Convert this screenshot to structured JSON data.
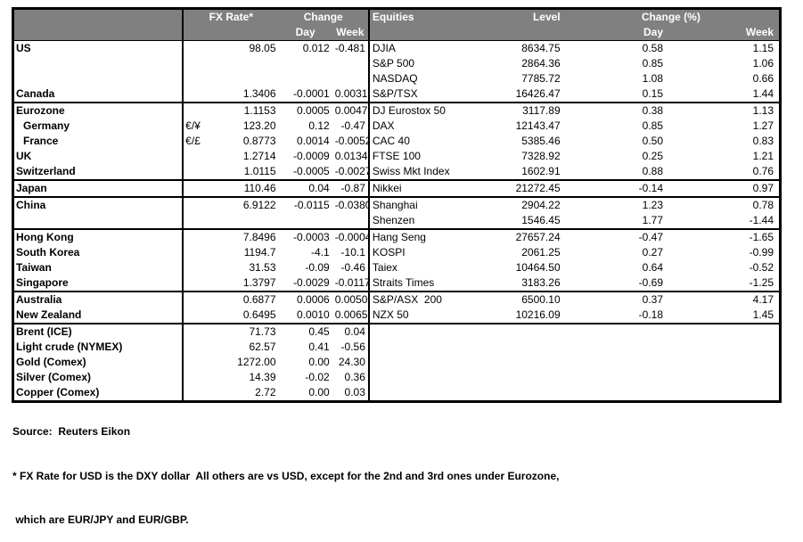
{
  "colors": {
    "header_bg": "#808080",
    "header_text": "#ffffff",
    "border": "#000000",
    "background": "#ffffff",
    "text": "#000000"
  },
  "fx_panel": {
    "header": {
      "rate": "FX Rate*",
      "change": "Change",
      "day": "Day",
      "week": "Week"
    }
  },
  "equity_panel": {
    "header": {
      "name": "Equities",
      "level": "Level",
      "change": "Change (%)",
      "day": "Day",
      "week": "Week"
    }
  },
  "rows": [
    {
      "name": "US",
      "pair": "",
      "rate": "98.05",
      "day": "0.012",
      "week": "-0.481",
      "indent": false,
      "eq_name": "DJIA",
      "level": "8634.75",
      "eq_day": "0.58",
      "eq_week": "1.15",
      "group_end": false
    },
    {
      "name": "",
      "pair": "",
      "rate": "",
      "day": "",
      "week": "",
      "indent": false,
      "eq_name": "S&P 500",
      "level": "2864.36",
      "eq_day": "0.85",
      "eq_week": "1.06",
      "group_end": false
    },
    {
      "name": "",
      "pair": "",
      "rate": "",
      "day": "",
      "week": "",
      "indent": false,
      "eq_name": "NASDAQ",
      "level": "7785.72",
      "eq_day": "1.08",
      "eq_week": "0.66",
      "group_end": false
    },
    {
      "name": "Canada",
      "pair": "",
      "rate": "1.3406",
      "day": "-0.0001",
      "week": "0.0031",
      "indent": false,
      "eq_name": "S&P/TSX",
      "level": "16426.47",
      "eq_day": "0.15",
      "eq_week": "1.44",
      "group_end": true
    },
    {
      "name": "Eurozone",
      "pair": "",
      "rate": "1.1153",
      "day": "0.0005",
      "week": "0.0047",
      "indent": false,
      "eq_name": "DJ Eurostox 50",
      "level": "3117.89",
      "eq_day": "0.38",
      "eq_week": "1.13",
      "group_end": false
    },
    {
      "name": "Germany",
      "pair": "€/¥",
      "rate": "123.20",
      "day": "0.12",
      "week": "-0.47",
      "indent": true,
      "eq_name": "DAX",
      "level": "12143.47",
      "eq_day": "0.85",
      "eq_week": "1.27",
      "group_end": false
    },
    {
      "name": "France",
      "pair": "€/£",
      "rate": "0.8773",
      "day": "0.0014",
      "week": "-0.0052",
      "indent": true,
      "eq_name": "CAC 40",
      "level": "5385.46",
      "eq_day": "0.50",
      "eq_week": "0.83",
      "group_end": false
    },
    {
      "name": "UK",
      "pair": "",
      "rate": "1.2714",
      "day": "-0.0009",
      "week": "0.0134",
      "indent": false,
      "eq_name": "FTSE 100",
      "level": "7328.92",
      "eq_day": "0.25",
      "eq_week": "1.21",
      "group_end": false
    },
    {
      "name": "Switzerland",
      "pair": "",
      "rate": "1.0115",
      "day": "-0.0005",
      "week": "-0.0027",
      "indent": false,
      "eq_name": "Swiss Mkt Index",
      "level": "1602.91",
      "eq_day": "0.88",
      "eq_week": "0.76",
      "group_end": true
    },
    {
      "name": "Japan",
      "pair": "",
      "rate": "110.46",
      "day": "0.04",
      "week": "-0.87",
      "indent": false,
      "eq_name": "Nikkei",
      "level": "21272.45",
      "eq_day": "-0.14",
      "eq_week": "0.97",
      "group_end": true
    },
    {
      "name": "China",
      "pair": "",
      "rate": "6.9122",
      "day": "-0.0115",
      "week": "-0.0380",
      "indent": false,
      "eq_name": "Shanghai",
      "level": "2904.22",
      "eq_day": "1.23",
      "eq_week": "0.78",
      "group_end": false
    },
    {
      "name": "",
      "pair": "",
      "rate": "",
      "day": "",
      "week": "",
      "indent": false,
      "eq_name": "Shenzen",
      "level": "1546.45",
      "eq_day": "1.77",
      "eq_week": "-1.44",
      "group_end": true
    },
    {
      "name": "Hong Kong",
      "pair": "",
      "rate": "7.8496",
      "day": "-0.0003",
      "week": "-0.0004",
      "indent": false,
      "eq_name": "Hang Seng",
      "level": "27657.24",
      "eq_day": "-0.47",
      "eq_week": "-1.65",
      "group_end": false
    },
    {
      "name": "South Korea",
      "pair": "",
      "rate": "1194.7",
      "day": "-4.1",
      "week": "-10.1",
      "indent": false,
      "eq_name": "KOSPI",
      "level": "2061.25",
      "eq_day": "0.27",
      "eq_week": "-0.99",
      "group_end": false
    },
    {
      "name": "Taiwan",
      "pair": "",
      "rate": "31.53",
      "day": "-0.09",
      "week": "-0.46",
      "indent": false,
      "eq_name": "Taiex",
      "level": "10464.50",
      "eq_day": "0.64",
      "eq_week": "-0.52",
      "group_end": false
    },
    {
      "name": "Singapore",
      "pair": "",
      "rate": "1.3797",
      "day": "-0.0029",
      "week": "-0.0117",
      "indent": false,
      "eq_name": "Straits Times",
      "level": "3183.26",
      "eq_day": "-0.69",
      "eq_week": "-1.25",
      "group_end": true
    },
    {
      "name": "Australia",
      "pair": "",
      "rate": "0.6877",
      "day": "0.0006",
      "week": "0.0050",
      "indent": false,
      "eq_name": "S&P/ASX  200",
      "level": "6500.10",
      "eq_day": "0.37",
      "eq_week": "4.17",
      "group_end": false
    },
    {
      "name": "New Zealand",
      "pair": "",
      "rate": "0.6495",
      "day": "0.0010",
      "week": "0.0065",
      "indent": false,
      "eq_name": "NZX 50",
      "level": "10216.09",
      "eq_day": "-0.18",
      "eq_week": "1.45",
      "group_end": true
    },
    {
      "name": "Brent (ICE)",
      "pair": "",
      "rate": "71.73",
      "day": "0.45",
      "week": "0.04",
      "indent": false,
      "eq_name": "",
      "level": "",
      "eq_day": "",
      "eq_week": "",
      "group_end": false
    },
    {
      "name": "Light crude (NYMEX)",
      "pair": "",
      "rate": "62.57",
      "day": "0.41",
      "week": "-0.56",
      "indent": false,
      "eq_name": "",
      "level": "",
      "eq_day": "",
      "eq_week": "",
      "group_end": false
    },
    {
      "name": "Gold (Comex)",
      "pair": "",
      "rate": "1272.00",
      "day": "0.00",
      "week": "24.30",
      "indent": false,
      "eq_name": "",
      "level": "",
      "eq_day": "",
      "eq_week": "",
      "group_end": false
    },
    {
      "name": "Silver (Comex)",
      "pair": "",
      "rate": "14.39",
      "day": "-0.02",
      "week": "0.36",
      "indent": false,
      "eq_name": "",
      "level": "",
      "eq_day": "",
      "eq_week": "",
      "group_end": false
    },
    {
      "name": "Copper (Comex)",
      "pair": "",
      "rate": "2.72",
      "day": "0.00",
      "week": "0.03",
      "indent": false,
      "eq_name": "",
      "level": "",
      "eq_day": "",
      "eq_week": "",
      "group_end": false
    }
  ],
  "footer": {
    "source": "Source:  Reuters Eikon",
    "note_line1": "* FX Rate for USD is the DXY dollar  All others are vs USD, except for the 2nd and 3rd ones under Eurozone,",
    "note_line2": " which are EUR/JPY and EUR/GBP."
  }
}
